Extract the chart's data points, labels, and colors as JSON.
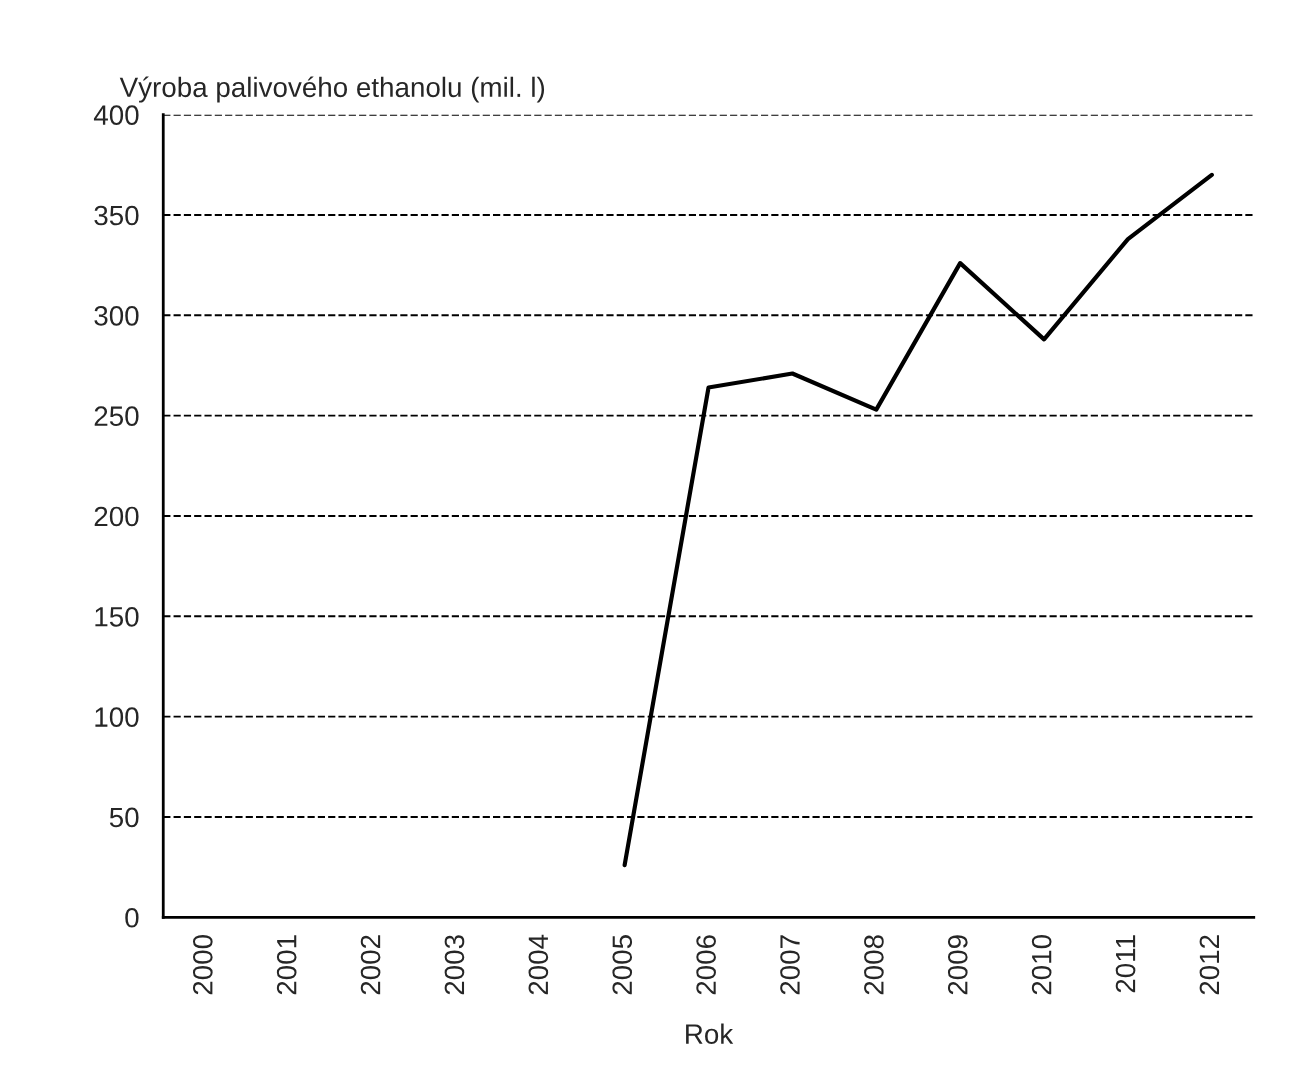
{
  "chart_data": {
    "type": "line",
    "ylabel": "Výroba palivového ethanolu (mil. l)",
    "xlabel": "Rok",
    "categories": [
      "2000",
      "2001",
      "2002",
      "2003",
      "2004",
      "2005",
      "2006",
      "2007",
      "2008",
      "2009",
      "2010",
      "2011",
      "2012"
    ],
    "series": [
      {
        "color": "#000000",
        "values": [
          null,
          null,
          null,
          null,
          null,
          26,
          264,
          271,
          253,
          326,
          288,
          338,
          370
        ]
      }
    ],
    "ylim": [
      0,
      400
    ],
    "yticks": [
      0,
      50,
      100,
      150,
      200,
      250,
      300,
      350,
      400
    ],
    "grid": "y",
    "marker": "none",
    "line_style": "solid",
    "legend": false
  }
}
